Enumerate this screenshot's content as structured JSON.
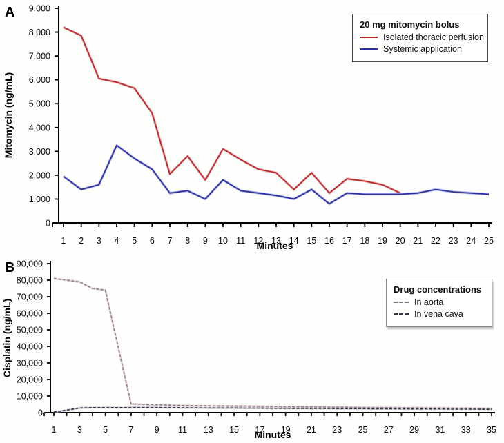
{
  "panels": [
    {
      "letter": "A"
    },
    {
      "letter": "B"
    }
  ],
  "chart_data": [
    {
      "type": "line",
      "panel": "A",
      "title": "",
      "xlabel": "Minutes",
      "ylabel": "Mitomycin (ng/mL)",
      "x_min": 1,
      "x_max": 25,
      "ylim": [
        0,
        9000
      ],
      "y_tick_step": 1000,
      "y_tick_labels": [
        "0",
        "1,000",
        "2,000",
        "3,000",
        "4,000",
        "5,000",
        "6,000",
        "7,000",
        "8,000",
        "9,000"
      ],
      "x_tick_labels": [
        "1",
        "2",
        "3",
        "4",
        "5",
        "6",
        "7",
        "8",
        "9",
        "10",
        "11",
        "12",
        "13",
        "14",
        "15",
        "16",
        "17",
        "18",
        "19",
        "20",
        "21",
        "22",
        "23",
        "24",
        "25"
      ],
      "grid": false,
      "legend": {
        "position": "top-right",
        "title": "20 mg mitomycin bolus",
        "entries": [
          {
            "label": "Isolated thoracic perfusion"
          },
          {
            "label": "Systemic application"
          }
        ]
      },
      "series": [
        {
          "name": "Isolated thoracic perfusion",
          "color": "#b3282d",
          "halo": "#e59c9c",
          "dash": "",
          "start_x": 1,
          "values": [
            8200,
            7850,
            6050,
            5900,
            5650,
            4600,
            2050,
            2800,
            1800,
            3100,
            2650,
            2250,
            2100,
            1400,
            2100,
            1250,
            1850,
            1750,
            1600,
            1250
          ]
        },
        {
          "name": "Systemic application",
          "color": "#2b2f9e",
          "halo": "#9a9ee0",
          "dash": "",
          "start_x": 1,
          "values": [
            1950,
            1400,
            1600,
            3250,
            2700,
            2250,
            1250,
            1350,
            1000,
            1800,
            1350,
            1250,
            1150,
            1000,
            1400,
            800,
            1250,
            1200,
            1200,
            1200,
            1250,
            1400,
            1300,
            1250,
            1200
          ]
        }
      ]
    },
    {
      "type": "line",
      "panel": "B",
      "title": "",
      "xlabel": "Minutes",
      "ylabel": "Cisplatin (ng/mL)",
      "x_min": 1,
      "x_max": 35,
      "ylim": [
        0,
        90000
      ],
      "y_tick_step": 10000,
      "y_tick_labels": [
        "0",
        "10,000",
        "20,000",
        "30,000",
        "40,000",
        "50,000",
        "60,000",
        "70,000",
        "80,000",
        "90,000"
      ],
      "x_tick_labels": [
        "1",
        "",
        "3",
        "",
        "5",
        "",
        "7",
        "",
        "9",
        "",
        "11",
        "",
        "13",
        "",
        "15",
        "",
        "17",
        "",
        "19",
        "",
        "21",
        "",
        "23",
        "",
        "25",
        "",
        "27",
        "",
        "29",
        "",
        "31",
        "",
        "33",
        "",
        "35"
      ],
      "grid": false,
      "legend": {
        "position": "top-right",
        "title": "Drug concentrations",
        "entries": [
          {
            "label": "In aorta"
          },
          {
            "label": "In vena cava"
          }
        ]
      },
      "series": [
        {
          "name": "In aorta",
          "color": "#8d7f86",
          "halo": "#dcc3cb",
          "dash": "4,2.4",
          "start_x": 1,
          "values": [
            81000,
            80000,
            79000,
            75000,
            74000,
            39500,
            5200,
            4900,
            4700,
            4500,
            4300,
            4200,
            4100,
            4000,
            3900,
            3900,
            3800,
            3700,
            3600,
            3500,
            3400,
            3300,
            3300,
            3200,
            3100,
            3000,
            3000,
            2900,
            2900,
            2800,
            2800,
            2700,
            2700,
            2600,
            2500
          ]
        },
        {
          "name": "In vena cava",
          "color": "#34343e",
          "halo": "#c3b4c9",
          "dash": "4,2.4",
          "start_x": 1,
          "values": [
            300,
            1500,
            2800,
            3000,
            3000,
            3000,
            3000,
            3100,
            3000,
            3000,
            2900,
            2900,
            2800,
            2800,
            2800,
            2700,
            2700,
            2600,
            2600,
            2500,
            2500,
            2500,
            2400,
            2400,
            2400,
            2300,
            2300,
            2300,
            2200,
            2200,
            2200,
            2100,
            2100,
            2100,
            2000
          ]
        }
      ]
    }
  ]
}
